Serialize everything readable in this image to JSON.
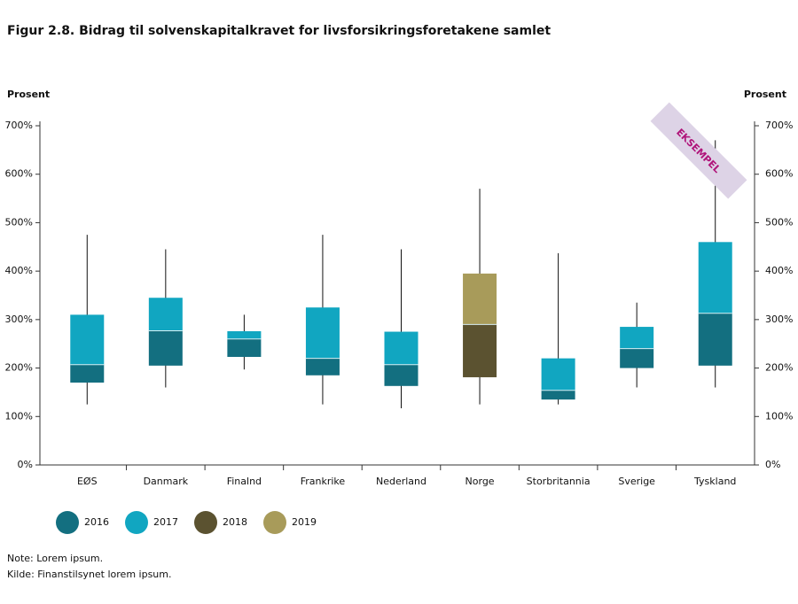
{
  "chart_data": {
    "type": "box",
    "title": "Figur 2.8. Bidrag til solvenskapitalkravet for livsforsikringsforetakene samlet",
    "y_label": "Prosent",
    "y2_label": "Prosent",
    "categories": [
      "EØS",
      "Danmark",
      "Finalnd",
      "Frankrike",
      "Nederland",
      "Norge",
      "Storbritannia",
      "Sverige",
      "Tyskland"
    ],
    "whisker_low": [
      125,
      160,
      197,
      125,
      117,
      125,
      125,
      160,
      160
    ],
    "q1": [
      170,
      205,
      223,
      185,
      163,
      181,
      135,
      200,
      205
    ],
    "median": [
      207,
      277,
      260,
      220,
      207,
      290,
      154,
      240,
      313
    ],
    "q3": [
      310,
      345,
      276,
      325,
      275,
      395,
      220,
      285,
      460
    ],
    "whisker_high": [
      475,
      445,
      310,
      475,
      445,
      570,
      437,
      335,
      670
    ],
    "lower_series": [
      "2016",
      "2016",
      "2016",
      "2016",
      "2016",
      "2018",
      "2016",
      "2016",
      "2016"
    ],
    "upper_series": [
      "2017",
      "2017",
      "2017",
      "2017",
      "2017",
      "2019",
      "2017",
      "2017",
      "2017"
    ],
    "series": [
      {
        "name": "2016",
        "color": "#136f80"
      },
      {
        "name": "2017",
        "color": "#11a6c1"
      },
      {
        "name": "2018",
        "color": "#5b5230"
      },
      {
        "name": "2019",
        "color": "#a89b5a"
      }
    ],
    "ylim": [
      0,
      700
    ],
    "yticks": [
      {
        "value": 0,
        "label": "0%"
      },
      {
        "value": 100,
        "label": "100%"
      },
      {
        "value": 200,
        "label": "200%"
      },
      {
        "value": 300,
        "label": "300%"
      },
      {
        "value": 400,
        "label": "400%"
      },
      {
        "value": 500,
        "label": "500%"
      },
      {
        "value": 600,
        "label": "600%"
      },
      {
        "value": 700,
        "label": "700%"
      }
    ],
    "annotation": "EKSEMPEL",
    "note": "Note: Lorem ipsum.",
    "source": "Kilde: Finanstilsynet lorem ipsum."
  }
}
